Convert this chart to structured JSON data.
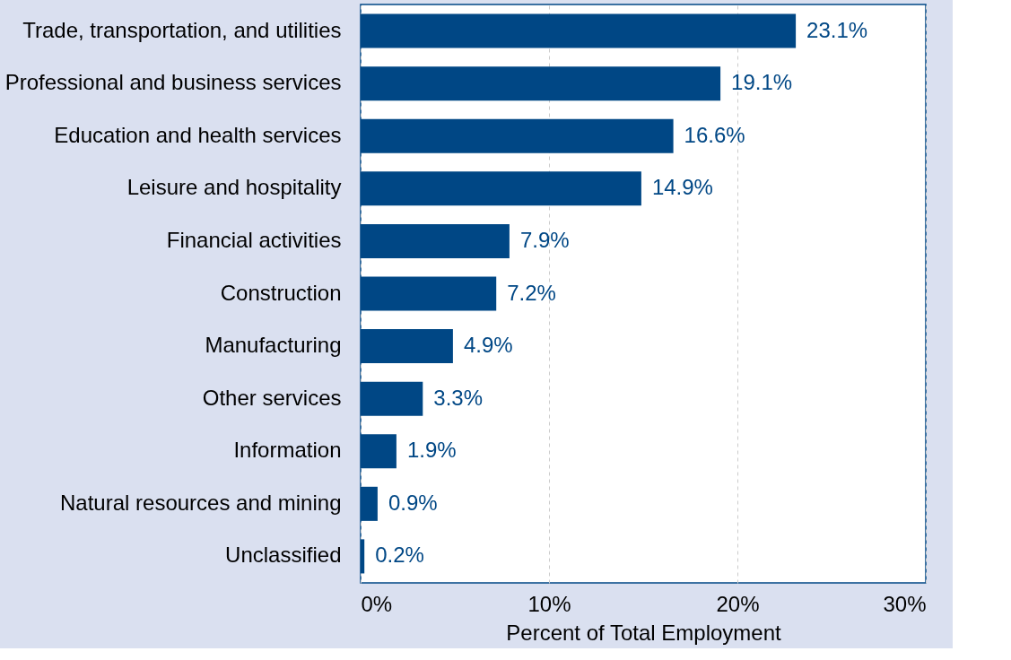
{
  "chart_data": {
    "type": "bar",
    "orientation": "horizontal",
    "xlabel": "Percent of Total Employment",
    "categories": [
      "Trade, transportation, and utilities",
      "Professional and business services",
      "Education and health services",
      "Leisure and hospitality",
      "Financial activities",
      "Construction",
      "Manufacturing",
      "Other services",
      "Information",
      "Natural resources and mining",
      "Unclassified"
    ],
    "values": [
      23.1,
      19.1,
      16.6,
      14.9,
      7.9,
      7.2,
      4.9,
      3.3,
      1.9,
      0.9,
      0.2
    ],
    "value_labels": [
      "23.1%",
      "19.1%",
      "16.6%",
      "14.9%",
      "7.9%",
      "7.2%",
      "4.9%",
      "3.3%",
      "1.9%",
      "0.9%",
      "0.2%"
    ],
    "color": "#004785",
    "xlim": [
      0,
      30
    ],
    "xticks": [
      {
        "value": 0,
        "label": "0%"
      },
      {
        "value": 10,
        "label": "10%"
      },
      {
        "value": 20,
        "label": "20%"
      },
      {
        "value": 30,
        "label": "30%"
      }
    ],
    "grid": "x"
  }
}
